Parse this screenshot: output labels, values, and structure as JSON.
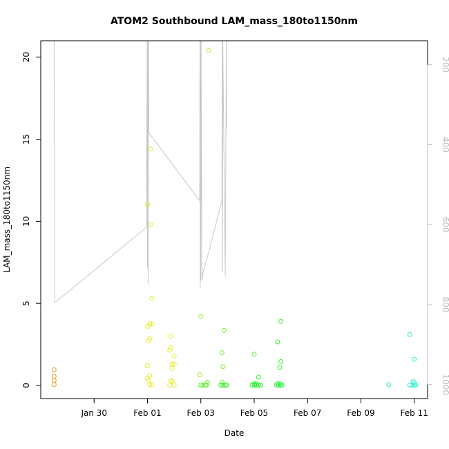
{
  "chart_data": {
    "type": "scatter",
    "title": "ATOM2 Southbound LAM_mass_180to1150nm",
    "xlabel": "Date",
    "ylabel": "LAM_mass_180to1150nm",
    "x_is_date": true,
    "xlim": [
      "2017-01-28",
      "2017-02-11T12:00"
    ],
    "ylim": [
      -0.8,
      21
    ],
    "y_ticks": [
      0,
      5,
      10,
      15,
      20
    ],
    "x_ticks": [
      {
        "date": "2017-01-30",
        "label": "Jan 30"
      },
      {
        "date": "2017-02-01",
        "label": "Feb 01"
      },
      {
        "date": "2017-02-03",
        "label": "Feb 03"
      },
      {
        "date": "2017-02-05",
        "label": "Feb 05"
      },
      {
        "date": "2017-02-07",
        "label": "Feb 07"
      },
      {
        "date": "2017-02-09",
        "label": "Feb 09"
      },
      {
        "date": "2017-02-11",
        "label": "Feb 11"
      }
    ],
    "secondary_axis": {
      "label": "",
      "ylim": [
        1035,
        140
      ],
      "ticks": [
        200,
        400,
        600,
        800,
        1000
      ],
      "color": "#bdbdbd"
    },
    "points": [
      {
        "x": "2017-01-28T12:00",
        "y": 0.95,
        "color": "#e89b1c"
      },
      {
        "x": "2017-01-28T12:00",
        "y": 0.55,
        "color": "#e89b1c"
      },
      {
        "x": "2017-01-28T12:00",
        "y": 0.3,
        "color": "#e89b1c"
      },
      {
        "x": "2017-01-28T12:00",
        "y": 0.05,
        "color": "#e89b1c"
      },
      {
        "x": "2017-02-01T03:00",
        "y": 14.4,
        "color": "#e6ee2e"
      },
      {
        "x": "2017-02-01T00:00",
        "y": 11.0,
        "color": "#e6ee2e"
      },
      {
        "x": "2017-02-01T03:00",
        "y": 9.8,
        "color": "#e6ee2e"
      },
      {
        "x": "2017-02-01T04:00",
        "y": 5.3,
        "color": "#e6ee2e"
      },
      {
        "x": "2017-02-01T00:00",
        "y": 3.6,
        "color": "#e6ee2e"
      },
      {
        "x": "2017-02-01T02:00",
        "y": 3.75,
        "color": "#e6ee2e"
      },
      {
        "x": "2017-02-01T04:00",
        "y": 3.75,
        "color": "#e6ee2e"
      },
      {
        "x": "2017-02-01T02:00",
        "y": 2.85,
        "color": "#e6ee2e"
      },
      {
        "x": "2017-02-01T01:00",
        "y": 2.7,
        "color": "#e6ee2e"
      },
      {
        "x": "2017-02-01T00:00",
        "y": 1.2,
        "color": "#e6ee2e"
      },
      {
        "x": "2017-02-01T02:00",
        "y": 0.6,
        "color": "#e6ee2e"
      },
      {
        "x": "2017-02-01T00:00",
        "y": 0.45,
        "color": "#e6ee2e"
      },
      {
        "x": "2017-02-01T01:00",
        "y": 0.3,
        "color": "#e6ee2e"
      },
      {
        "x": "2017-02-01T02:00",
        "y": 0.05,
        "color": "#e6ee2e"
      },
      {
        "x": "2017-02-01T04:00",
        "y": 0.02,
        "color": "#e6ee2e"
      },
      {
        "x": "2017-02-01T21:00",
        "y": 3.0,
        "color": "#e6ee2e"
      },
      {
        "x": "2017-02-01T21:00",
        "y": 2.3,
        "color": "#e6ee2e"
      },
      {
        "x": "2017-02-01T20:00",
        "y": 2.15,
        "color": "#e6ee2e"
      },
      {
        "x": "2017-02-02T00:00",
        "y": 1.8,
        "color": "#e6ee2e"
      },
      {
        "x": "2017-02-01T22:00",
        "y": 1.3,
        "color": "#e6ee2e"
      },
      {
        "x": "2017-02-02T00:00",
        "y": 1.3,
        "color": "#e6ee2e"
      },
      {
        "x": "2017-02-01T22:00",
        "y": 1.05,
        "color": "#e6ee2e"
      },
      {
        "x": "2017-02-01T21:00",
        "y": 0.3,
        "color": "#e6ee2e"
      },
      {
        "x": "2017-02-01T22:00",
        "y": 0.25,
        "color": "#e6ee2e"
      },
      {
        "x": "2017-02-01T20:00",
        "y": 0.02,
        "color": "#e6ee2e"
      },
      {
        "x": "2017-02-02T00:00",
        "y": 0.02,
        "color": "#e6ee2e"
      },
      {
        "x": "2017-02-03T07:00",
        "y": 20.4,
        "color": "#a8ef2b"
      },
      {
        "x": "2017-02-03T00:00",
        "y": 4.2,
        "color": "#a8ef2b"
      },
      {
        "x": "2017-02-02T23:00",
        "y": 0.65,
        "color": "#a8ef2b"
      },
      {
        "x": "2017-02-03T06:00",
        "y": 0.2,
        "color": "#6cf02a"
      },
      {
        "x": "2017-02-03T00:00",
        "y": 0.02,
        "color": "#5cf02a"
      },
      {
        "x": "2017-02-03T02:00",
        "y": 0.02,
        "color": "#5cf02a"
      },
      {
        "x": "2017-02-03T04:00",
        "y": 0.02,
        "color": "#5cf02a"
      },
      {
        "x": "2017-02-03T05:00",
        "y": 0.02,
        "color": "#5cf02a"
      },
      {
        "x": "2017-02-03T21:00",
        "y": 3.35,
        "color": "#7cf02a"
      },
      {
        "x": "2017-02-03T19:00",
        "y": 2.0,
        "color": "#7cf02a"
      },
      {
        "x": "2017-02-03T20:00",
        "y": 1.15,
        "color": "#7cf02a"
      },
      {
        "x": "2017-02-03T19:00",
        "y": 0.2,
        "color": "#5cf02a"
      },
      {
        "x": "2017-02-03T18:00",
        "y": 0.02,
        "color": "#3df02a"
      },
      {
        "x": "2017-02-03T20:00",
        "y": 0.02,
        "color": "#3df02a"
      },
      {
        "x": "2017-02-03T22:00",
        "y": 0.02,
        "color": "#3df02a"
      },
      {
        "x": "2017-02-03T23:00",
        "y": 0.02,
        "color": "#3df02a"
      },
      {
        "x": "2017-02-05T00:00",
        "y": 1.9,
        "color": "#5cf02a"
      },
      {
        "x": "2017-02-05T04:00",
        "y": 0.5,
        "color": "#3df02a"
      },
      {
        "x": "2017-02-05T00:00",
        "y": 0.1,
        "color": "#2cf02c"
      },
      {
        "x": "2017-02-05T02:00",
        "y": 0.1,
        "color": "#2cf02c"
      },
      {
        "x": "2017-02-04T22:00",
        "y": 0.02,
        "color": "#2cf02c"
      },
      {
        "x": "2017-02-05T00:00",
        "y": 0.02,
        "color": "#2cf02c"
      },
      {
        "x": "2017-02-05T02:00",
        "y": 0.02,
        "color": "#2cf02c"
      },
      {
        "x": "2017-02-05T04:00",
        "y": 0.02,
        "color": "#2cf02c"
      },
      {
        "x": "2017-02-05T06:00",
        "y": 0.02,
        "color": "#2cf02c"
      },
      {
        "x": "2017-02-06T00:00",
        "y": 3.9,
        "color": "#3df02a"
      },
      {
        "x": "2017-02-05T21:00",
        "y": 2.65,
        "color": "#3df02a"
      },
      {
        "x": "2017-02-06T00:00",
        "y": 1.45,
        "color": "#3df02a"
      },
      {
        "x": "2017-02-05T23:00",
        "y": 1.1,
        "color": "#3df02a"
      },
      {
        "x": "2017-02-05T21:00",
        "y": 0.1,
        "color": "#2cf045"
      },
      {
        "x": "2017-02-05T23:00",
        "y": 0.1,
        "color": "#2cf045"
      },
      {
        "x": "2017-02-05T20:00",
        "y": 0.02,
        "color": "#2cf045"
      },
      {
        "x": "2017-02-05T22:00",
        "y": 0.02,
        "color": "#2cf045"
      },
      {
        "x": "2017-02-06T00:00",
        "y": 0.02,
        "color": "#2cf045"
      },
      {
        "x": "2017-02-06T01:00",
        "y": 0.02,
        "color": "#2cf045"
      },
      {
        "x": "2017-02-10T01:00",
        "y": 0.05,
        "color": "#2cf0a0"
      },
      {
        "x": "2017-02-10T20:00",
        "y": 3.1,
        "color": "#2cf0b0"
      },
      {
        "x": "2017-02-11T00:00",
        "y": 1.6,
        "color": "#2cf0c0"
      },
      {
        "x": "2017-02-10T23:00",
        "y": 0.25,
        "color": "#2cf0d0"
      },
      {
        "x": "2017-02-11T00:00",
        "y": 0.15,
        "color": "#2cf0d0"
      },
      {
        "x": "2017-02-10T20:00",
        "y": 0.02,
        "color": "#2cf0d0"
      },
      {
        "x": "2017-02-10T22:00",
        "y": 0.02,
        "color": "#2cf0d0"
      },
      {
        "x": "2017-02-11T00:00",
        "y": 0.02,
        "color": "#2cf0d0"
      },
      {
        "x": "2017-02-11T01:00",
        "y": 0.02,
        "color": "#2cf0d0"
      }
    ],
    "altitude_series": {
      "color": "#c8c8c8",
      "points": [
        [
          "2017-01-28T12:00",
          140
        ],
        [
          "2017-01-28T12:45",
          795
        ],
        [
          "2017-01-31T23:00",
          607
        ],
        [
          "2017-01-31T23:45",
          140
        ],
        [
          "2017-02-01T00:00",
          710
        ],
        [
          "2017-02-01T00:20",
          140
        ],
        [
          "2017-02-01T00:35",
          750
        ],
        [
          "2017-02-01T00:55",
          140
        ],
        [
          "2017-02-01T01:15",
          370
        ],
        [
          "2017-02-02T23:00",
          540
        ],
        [
          "2017-02-02T23:15",
          140
        ],
        [
          "2017-02-02T23:30",
          760
        ],
        [
          "2017-02-02T23:45",
          140
        ],
        [
          "2017-02-03T00:00",
          740
        ],
        [
          "2017-02-03T00:15",
          140
        ],
        [
          "2017-02-03T01:00",
          740
        ],
        [
          "2017-02-03T02:00",
          720
        ],
        [
          "2017-02-03T06:00",
          680
        ],
        [
          "2017-02-03T19:00",
          540
        ],
        [
          "2017-02-03T19:15",
          140
        ],
        [
          "2017-02-03T19:30",
          720
        ],
        [
          "2017-02-03T19:45",
          140
        ],
        [
          "2017-02-03T22:00",
          730
        ],
        [
          "2017-02-03T23:00",
          140
        ],
        [
          "2017-02-03T23:10",
          360
        ]
      ]
    }
  }
}
